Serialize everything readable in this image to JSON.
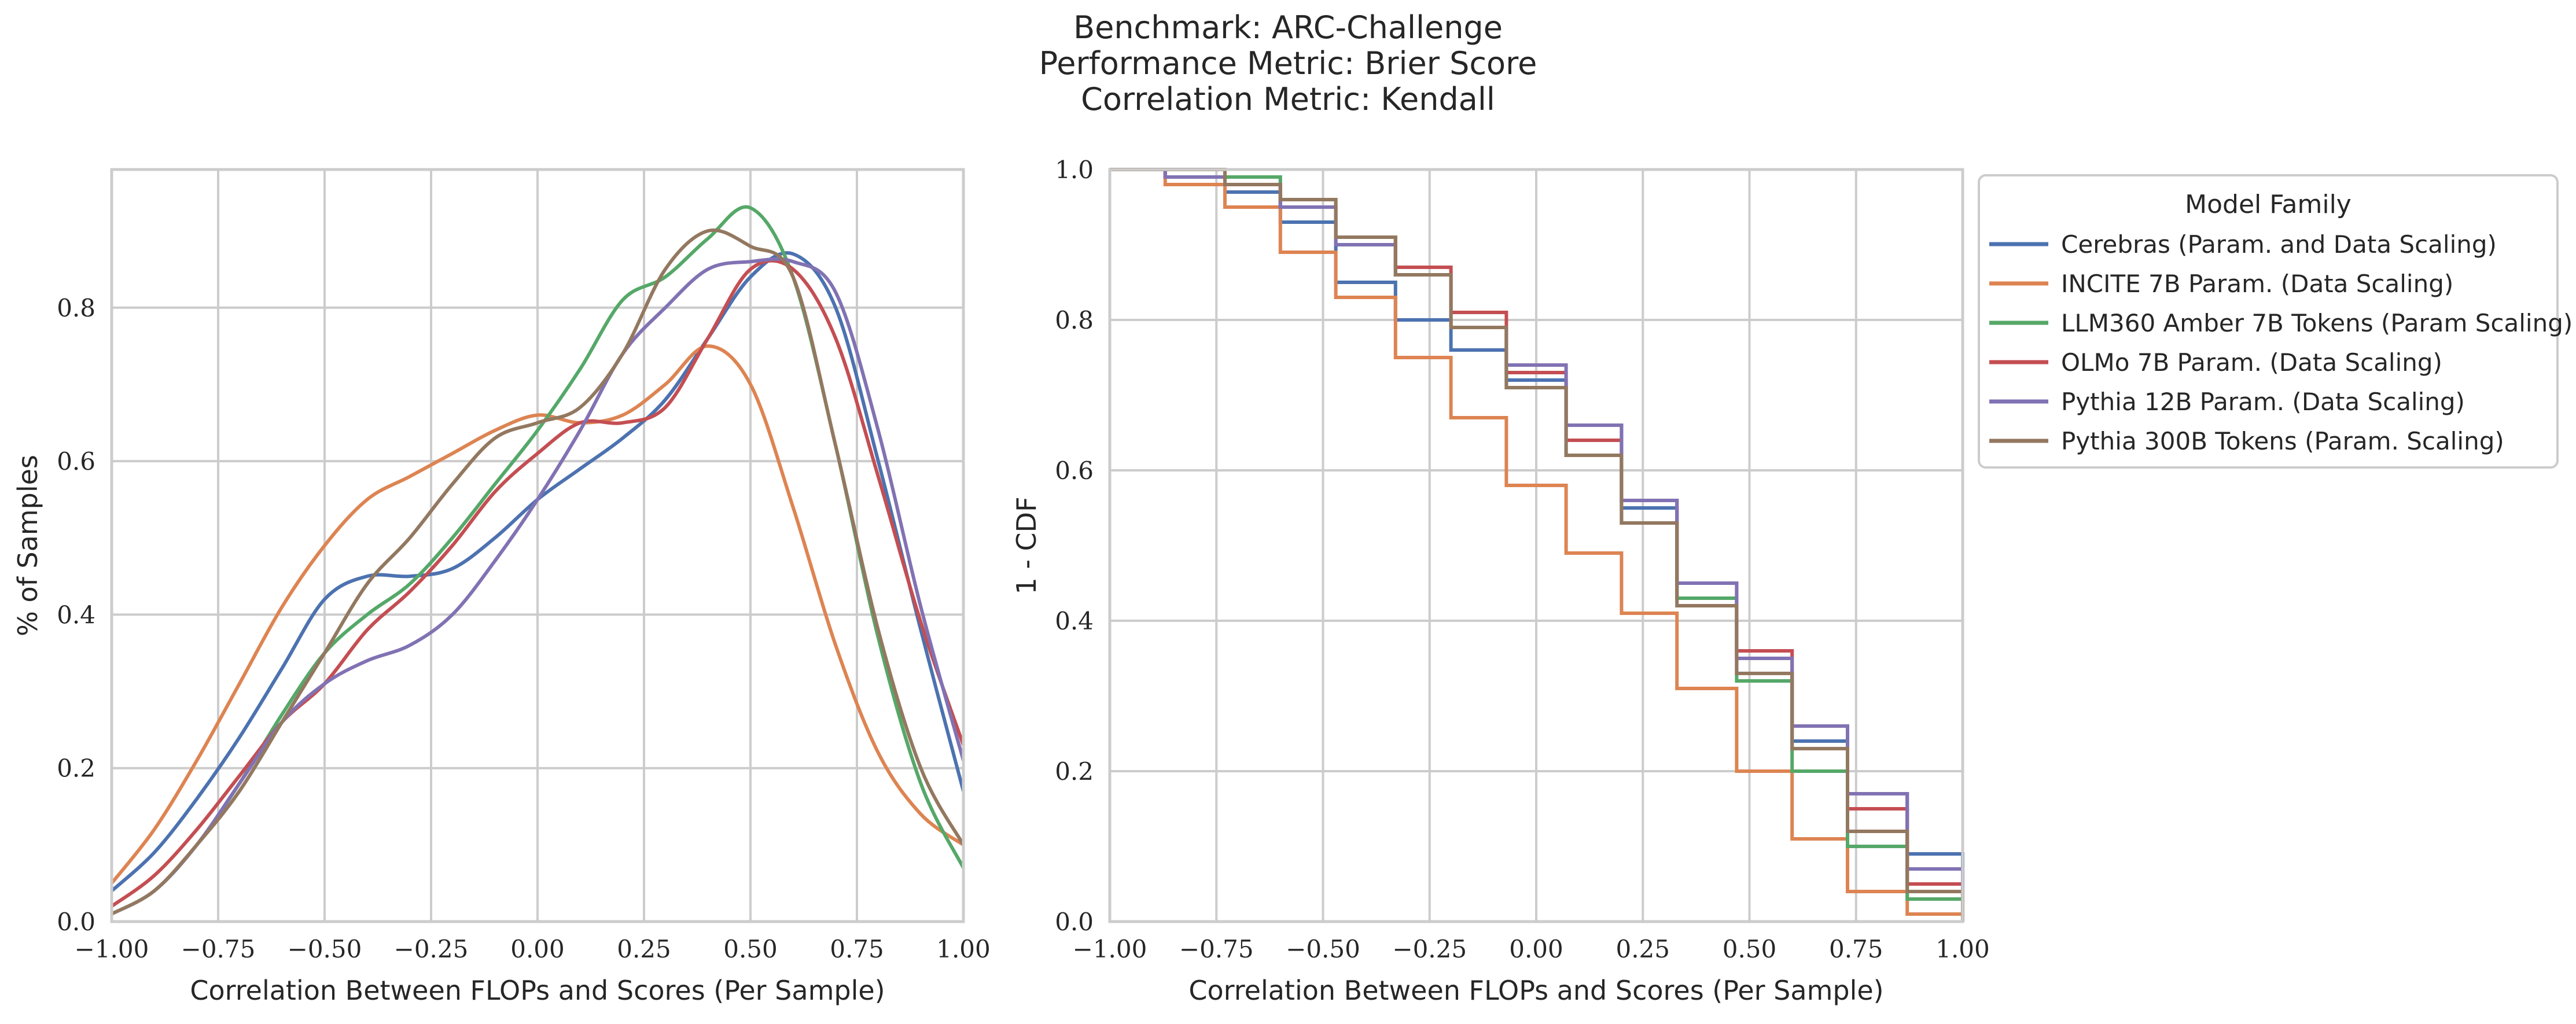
{
  "figure": {
    "title_lines": [
      "Benchmark: ARC-Challenge",
      "Performance Metric: Brier Score",
      "Correlation Metric: Kendall"
    ]
  },
  "legend": {
    "title": "Model Family",
    "placement": "right of right panel, top"
  },
  "series_meta": [
    {
      "name": "Cerebras (Param. and Data Scaling)",
      "color": "#4C72B0"
    },
    {
      "name": "INCITE 7B Param. (Data Scaling)",
      "color": "#DD8452"
    },
    {
      "name": "LLM360 Amber 7B Tokens (Param Scaling)",
      "color": "#55A868"
    },
    {
      "name": "OLMo 7B Param. (Data Scaling)",
      "color": "#C44E52"
    },
    {
      "name": "Pythia 12B Param. (Data Scaling)",
      "color": "#8172B3"
    },
    {
      "name": "Pythia 300B Tokens (Param. Scaling)",
      "color": "#937860"
    }
  ],
  "chart_data": [
    {
      "type": "line",
      "xlabel": "Correlation Between FLOPs and Scores (Per Sample)",
      "ylabel": "% of Samples",
      "xlim": [
        -1.0,
        1.0
      ],
      "ylim": [
        0.0,
        0.98
      ],
      "xticks": [
        -1.0,
        -0.75,
        -0.5,
        -0.25,
        0.0,
        0.25,
        0.5,
        0.75,
        1.0
      ],
      "xtick_labels": [
        "−1.00",
        "−0.75",
        "−0.50",
        "−0.25",
        "0.00",
        "0.25",
        "0.50",
        "0.75",
        "1.00"
      ],
      "yticks": [
        0.0,
        0.2,
        0.4,
        0.6,
        0.8
      ],
      "ytick_labels": [
        "0.0",
        "0.2",
        "0.4",
        "0.6",
        "0.8"
      ],
      "grid": true,
      "x": [
        -1.0,
        -0.9,
        -0.8,
        -0.7,
        -0.6,
        -0.5,
        -0.4,
        -0.3,
        -0.2,
        -0.1,
        0.0,
        0.1,
        0.2,
        0.3,
        0.4,
        0.5,
        0.6,
        0.7,
        0.8,
        0.9,
        1.0
      ],
      "series": [
        {
          "name": "Cerebras (Param. and Data Scaling)",
          "values": [
            0.04,
            0.09,
            0.16,
            0.24,
            0.33,
            0.42,
            0.45,
            0.45,
            0.46,
            0.5,
            0.55,
            0.59,
            0.63,
            0.68,
            0.76,
            0.84,
            0.87,
            0.8,
            0.6,
            0.38,
            0.17
          ]
        },
        {
          "name": "INCITE 7B Param. (Data Scaling)",
          "values": [
            0.05,
            0.12,
            0.21,
            0.31,
            0.41,
            0.49,
            0.55,
            0.58,
            0.61,
            0.64,
            0.66,
            0.65,
            0.66,
            0.7,
            0.75,
            0.7,
            0.54,
            0.36,
            0.22,
            0.14,
            0.1
          ]
        },
        {
          "name": "LLM360 Amber 7B Tokens (Param Scaling)",
          "values": [
            0.01,
            0.04,
            0.1,
            0.18,
            0.27,
            0.35,
            0.4,
            0.44,
            0.5,
            0.57,
            0.64,
            0.72,
            0.81,
            0.84,
            0.89,
            0.93,
            0.84,
            0.62,
            0.37,
            0.18,
            0.07
          ]
        },
        {
          "name": "OLMo 7B Param. (Data Scaling)",
          "values": [
            0.02,
            0.06,
            0.12,
            0.19,
            0.26,
            0.31,
            0.38,
            0.43,
            0.49,
            0.56,
            0.61,
            0.65,
            0.65,
            0.67,
            0.76,
            0.85,
            0.85,
            0.76,
            0.58,
            0.39,
            0.23
          ]
        },
        {
          "name": "Pythia 12B Param. (Data Scaling)",
          "values": [
            0.01,
            0.04,
            0.1,
            0.18,
            0.26,
            0.31,
            0.34,
            0.36,
            0.4,
            0.47,
            0.55,
            0.64,
            0.74,
            0.8,
            0.85,
            0.86,
            0.86,
            0.82,
            0.64,
            0.41,
            0.21
          ]
        },
        {
          "name": "Pythia 300B Tokens (Param. Scaling)",
          "values": [
            0.01,
            0.04,
            0.1,
            0.17,
            0.26,
            0.35,
            0.44,
            0.5,
            0.57,
            0.63,
            0.65,
            0.67,
            0.74,
            0.85,
            0.9,
            0.88,
            0.84,
            0.62,
            0.38,
            0.2,
            0.1
          ]
        }
      ]
    },
    {
      "type": "line",
      "step": true,
      "xlabel": "Correlation Between FLOPs and Scores (Per Sample)",
      "ylabel": "1 - CDF",
      "xlim": [
        -1.0,
        1.0
      ],
      "ylim": [
        0.0,
        1.0
      ],
      "xticks": [
        -1.0,
        -0.75,
        -0.5,
        -0.25,
        0.0,
        0.25,
        0.5,
        0.75,
        1.0
      ],
      "xtick_labels": [
        "−1.00",
        "−0.75",
        "−0.50",
        "−0.25",
        "0.00",
        "0.25",
        "0.50",
        "0.75",
        "1.00"
      ],
      "yticks": [
        0.0,
        0.2,
        0.4,
        0.6,
        0.8,
        1.0
      ],
      "ytick_labels": [
        "0.0",
        "0.2",
        "0.4",
        "0.6",
        "0.8",
        "1.0"
      ],
      "grid": true,
      "series": [
        {
          "name": "Cerebras (Param. and Data Scaling)",
          "x": [
            -1.0,
            -0.87,
            -0.73,
            -0.6,
            -0.47,
            -0.33,
            -0.2,
            -0.07,
            0.07,
            0.2,
            0.33,
            0.47,
            0.6,
            0.73,
            0.87,
            1.0
          ],
          "y": [
            1.0,
            0.99,
            0.97,
            0.93,
            0.85,
            0.8,
            0.76,
            0.72,
            0.66,
            0.55,
            0.43,
            0.33,
            0.24,
            0.17,
            0.09,
            0.02
          ]
        },
        {
          "name": "INCITE 7B Param. (Data Scaling)",
          "x": [
            -1.0,
            -0.87,
            -0.73,
            -0.6,
            -0.47,
            -0.33,
            -0.2,
            -0.07,
            0.07,
            0.2,
            0.33,
            0.47,
            0.6,
            0.73,
            0.87,
            1.0
          ],
          "y": [
            1.0,
            0.98,
            0.95,
            0.89,
            0.83,
            0.75,
            0.67,
            0.58,
            0.49,
            0.41,
            0.31,
            0.2,
            0.11,
            0.04,
            0.01,
            0.0
          ]
        },
        {
          "name": "LLM360 Amber 7B Tokens (Param Scaling)",
          "x": [
            -1.0,
            -0.87,
            -0.73,
            -0.6,
            -0.47,
            -0.33,
            -0.2,
            -0.07,
            0.07,
            0.2,
            0.33,
            0.47,
            0.6,
            0.73,
            0.87,
            1.0
          ],
          "y": [
            1.0,
            1.0,
            0.99,
            0.96,
            0.91,
            0.86,
            0.79,
            0.71,
            0.62,
            0.53,
            0.43,
            0.32,
            0.2,
            0.1,
            0.03,
            0.0
          ]
        },
        {
          "name": "OLMo 7B Param. (Data Scaling)",
          "x": [
            -1.0,
            -0.87,
            -0.73,
            -0.6,
            -0.47,
            -0.33,
            -0.2,
            -0.07,
            0.07,
            0.2,
            0.33,
            0.47,
            0.6,
            0.73,
            0.87,
            1.0
          ],
          "y": [
            1.0,
            0.99,
            0.98,
            0.95,
            0.91,
            0.87,
            0.81,
            0.73,
            0.64,
            0.56,
            0.45,
            0.36,
            0.26,
            0.15,
            0.05,
            0.01
          ]
        },
        {
          "name": "Pythia 12B Param. (Data Scaling)",
          "x": [
            -1.0,
            -0.87,
            -0.73,
            -0.6,
            -0.47,
            -0.33,
            -0.2,
            -0.07,
            0.07,
            0.2,
            0.33,
            0.47,
            0.6,
            0.73,
            0.87,
            1.0
          ],
          "y": [
            1.0,
            0.99,
            0.98,
            0.95,
            0.9,
            0.86,
            0.79,
            0.74,
            0.66,
            0.56,
            0.45,
            0.35,
            0.26,
            0.17,
            0.07,
            0.01
          ]
        },
        {
          "name": "Pythia 300B Tokens (Param. Scaling)",
          "x": [
            -1.0,
            -0.87,
            -0.73,
            -0.6,
            -0.47,
            -0.33,
            -0.2,
            -0.07,
            0.07,
            0.2,
            0.33,
            0.47,
            0.6,
            0.73,
            0.87,
            1.0
          ],
          "y": [
            1.0,
            1.0,
            0.98,
            0.96,
            0.91,
            0.86,
            0.79,
            0.71,
            0.62,
            0.53,
            0.42,
            0.33,
            0.23,
            0.12,
            0.04,
            0.0
          ]
        }
      ]
    }
  ]
}
